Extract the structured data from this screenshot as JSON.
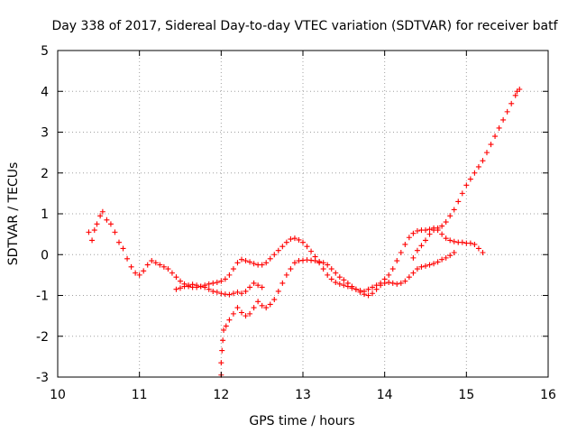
{
  "chart_data": {
    "type": "scatter",
    "title": "Day 338 of 2017, Sidereal Day-to-day VTEC variation (SDTVAR) for receiver batf",
    "xlabel": "GPS time / hours",
    "ylabel": "SDTVAR / TECUs",
    "xlim": [
      10,
      16
    ],
    "ylim": [
      -3,
      5
    ],
    "xticks": [
      "10",
      "11",
      "12",
      "13",
      "14",
      "15",
      "16"
    ],
    "yticks": [
      "-3",
      "-2",
      "-1",
      "0",
      "1",
      "2",
      "3",
      "4",
      "5"
    ],
    "grid": true,
    "marker": "plus",
    "series_color": "#ff0000",
    "series": [
      {
        "name": "trace-a",
        "points": [
          [
            10.38,
            0.55
          ],
          [
            10.42,
            0.35
          ],
          [
            10.45,
            0.6
          ],
          [
            10.48,
            0.75
          ],
          [
            10.52,
            0.95
          ],
          [
            10.55,
            1.05
          ],
          [
            10.6,
            0.85
          ],
          [
            10.65,
            0.75
          ],
          [
            10.7,
            0.55
          ],
          [
            10.75,
            0.3
          ],
          [
            10.8,
            0.15
          ],
          [
            10.85,
            -0.1
          ],
          [
            10.9,
            -0.3
          ],
          [
            10.95,
            -0.45
          ],
          [
            11.0,
            -0.5
          ],
          [
            11.05,
            -0.4
          ],
          [
            11.1,
            -0.25
          ],
          [
            11.15,
            -0.15
          ],
          [
            11.2,
            -0.2
          ],
          [
            11.25,
            -0.25
          ],
          [
            11.3,
            -0.3
          ],
          [
            11.35,
            -0.35
          ],
          [
            11.4,
            -0.45
          ],
          [
            11.45,
            -0.55
          ],
          [
            11.5,
            -0.65
          ],
          [
            11.55,
            -0.72
          ],
          [
            11.6,
            -0.78
          ],
          [
            11.65,
            -0.8
          ],
          [
            11.7,
            -0.8
          ],
          [
            11.75,
            -0.78
          ],
          [
            11.8,
            -0.75
          ],
          [
            11.85,
            -0.72
          ],
          [
            11.9,
            -0.7
          ],
          [
            11.95,
            -0.68
          ],
          [
            12.0,
            -0.65
          ],
          [
            12.05,
            -0.6
          ],
          [
            12.1,
            -0.5
          ],
          [
            12.15,
            -0.35
          ],
          [
            12.2,
            -0.2
          ],
          [
            12.25,
            -0.12
          ],
          [
            12.3,
            -0.15
          ],
          [
            12.35,
            -0.18
          ],
          [
            12.4,
            -0.22
          ],
          [
            12.45,
            -0.25
          ],
          [
            12.5,
            -0.25
          ],
          [
            12.55,
            -0.2
          ],
          [
            12.6,
            -0.1
          ],
          [
            12.65,
            0.0
          ],
          [
            12.7,
            0.1
          ],
          [
            12.75,
            0.2
          ],
          [
            12.8,
            0.3
          ],
          [
            12.85,
            0.38
          ],
          [
            12.9,
            0.4
          ],
          [
            12.95,
            0.36
          ],
          [
            13.0,
            0.3
          ],
          [
            13.05,
            0.2
          ],
          [
            13.1,
            0.08
          ],
          [
            13.15,
            -0.05
          ],
          [
            13.2,
            -0.2
          ],
          [
            13.25,
            -0.35
          ],
          [
            13.3,
            -0.5
          ],
          [
            13.35,
            -0.6
          ],
          [
            13.4,
            -0.68
          ],
          [
            13.45,
            -0.72
          ],
          [
            13.5,
            -0.75
          ],
          [
            13.55,
            -0.78
          ],
          [
            13.6,
            -0.82
          ],
          [
            13.65,
            -0.85
          ],
          [
            13.7,
            -0.88
          ],
          [
            13.75,
            -0.9
          ],
          [
            13.8,
            -0.85
          ],
          [
            13.85,
            -0.8
          ],
          [
            13.9,
            -0.75
          ],
          [
            13.95,
            -0.7
          ],
          [
            14.0,
            -0.6
          ],
          [
            14.05,
            -0.5
          ],
          [
            14.1,
            -0.35
          ],
          [
            14.15,
            -0.15
          ],
          [
            14.2,
            0.05
          ],
          [
            14.25,
            0.25
          ],
          [
            14.3,
            0.42
          ],
          [
            14.35,
            0.52
          ],
          [
            14.4,
            0.58
          ],
          [
            14.45,
            0.6
          ],
          [
            14.5,
            0.6
          ],
          [
            14.55,
            0.62
          ],
          [
            14.6,
            0.65
          ],
          [
            14.65,
            0.6
          ],
          [
            14.7,
            0.5
          ],
          [
            14.75,
            0.4
          ],
          [
            14.8,
            0.35
          ],
          [
            14.85,
            0.32
          ],
          [
            14.9,
            0.3
          ],
          [
            14.95,
            0.3
          ],
          [
            15.0,
            0.28
          ],
          [
            15.05,
            0.28
          ],
          [
            15.1,
            0.25
          ],
          [
            15.15,
            0.15
          ],
          [
            15.2,
            0.05
          ]
        ]
      },
      {
        "name": "trace-b",
        "points": [
          [
            11.45,
            -0.85
          ],
          [
            11.5,
            -0.82
          ],
          [
            11.55,
            -0.78
          ],
          [
            11.6,
            -0.75
          ],
          [
            11.65,
            -0.73
          ],
          [
            11.7,
            -0.75
          ],
          [
            11.75,
            -0.78
          ],
          [
            11.8,
            -0.8
          ],
          [
            11.85,
            -0.85
          ],
          [
            11.9,
            -0.9
          ],
          [
            11.95,
            -0.92
          ],
          [
            12.0,
            -0.95
          ],
          [
            12.05,
            -0.97
          ],
          [
            12.1,
            -0.98
          ],
          [
            12.15,
            -0.95
          ],
          [
            12.2,
            -0.92
          ],
          [
            12.25,
            -0.95
          ],
          [
            12.3,
            -0.9
          ],
          [
            12.35,
            -0.8
          ],
          [
            12.4,
            -0.7
          ],
          [
            12.45,
            -0.75
          ],
          [
            12.5,
            -0.8
          ]
        ]
      },
      {
        "name": "trace-c",
        "points": [
          [
            12.0,
            -2.95
          ],
          [
            12.0,
            -2.65
          ],
          [
            12.01,
            -2.35
          ],
          [
            12.02,
            -2.1
          ],
          [
            12.03,
            -1.85
          ],
          [
            12.06,
            -1.75
          ],
          [
            12.1,
            -1.6
          ],
          [
            12.15,
            -1.45
          ],
          [
            12.2,
            -1.3
          ],
          [
            12.25,
            -1.42
          ],
          [
            12.3,
            -1.5
          ],
          [
            12.35,
            -1.45
          ],
          [
            12.4,
            -1.3
          ],
          [
            12.45,
            -1.15
          ],
          [
            12.5,
            -1.25
          ],
          [
            12.55,
            -1.3
          ],
          [
            12.6,
            -1.22
          ],
          [
            12.65,
            -1.1
          ],
          [
            12.7,
            -0.9
          ],
          [
            12.75,
            -0.7
          ],
          [
            12.8,
            -0.5
          ],
          [
            12.85,
            -0.35
          ],
          [
            12.9,
            -0.2
          ],
          [
            12.95,
            -0.15
          ],
          [
            13.0,
            -0.14
          ],
          [
            13.05,
            -0.13
          ],
          [
            13.1,
            -0.14
          ],
          [
            13.15,
            -0.15
          ],
          [
            13.2,
            -0.17
          ],
          [
            13.25,
            -0.2
          ],
          [
            13.3,
            -0.25
          ],
          [
            13.35,
            -0.35
          ],
          [
            13.4,
            -0.45
          ],
          [
            13.45,
            -0.55
          ],
          [
            13.5,
            -0.62
          ],
          [
            13.55,
            -0.7
          ],
          [
            13.6,
            -0.78
          ],
          [
            13.65,
            -0.85
          ],
          [
            13.7,
            -0.92
          ],
          [
            13.75,
            -0.97
          ],
          [
            13.8,
            -1.0
          ],
          [
            13.85,
            -0.95
          ],
          [
            13.9,
            -0.85
          ],
          [
            13.95,
            -0.75
          ],
          [
            14.0,
            -0.7
          ],
          [
            14.05,
            -0.68
          ],
          [
            14.1,
            -0.7
          ],
          [
            14.15,
            -0.72
          ],
          [
            14.2,
            -0.7
          ],
          [
            14.25,
            -0.65
          ],
          [
            14.3,
            -0.55
          ],
          [
            14.35,
            -0.45
          ],
          [
            14.4,
            -0.35
          ],
          [
            14.45,
            -0.3
          ],
          [
            14.5,
            -0.28
          ],
          [
            14.55,
            -0.25
          ],
          [
            14.6,
            -0.22
          ],
          [
            14.65,
            -0.18
          ],
          [
            14.7,
            -0.12
          ],
          [
            14.75,
            -0.08
          ],
          [
            14.8,
            -0.02
          ],
          [
            14.85,
            0.05
          ]
        ]
      },
      {
        "name": "trace-d",
        "points": [
          [
            14.35,
            -0.08
          ],
          [
            14.4,
            0.1
          ],
          [
            14.45,
            0.22
          ],
          [
            14.5,
            0.35
          ],
          [
            14.55,
            0.5
          ],
          [
            14.6,
            0.6
          ],
          [
            14.65,
            0.65
          ],
          [
            14.7,
            0.7
          ],
          [
            14.75,
            0.8
          ],
          [
            14.8,
            0.95
          ],
          [
            14.85,
            1.1
          ],
          [
            14.9,
            1.3
          ],
          [
            14.95,
            1.5
          ],
          [
            15.0,
            1.7
          ],
          [
            15.05,
            1.85
          ],
          [
            15.1,
            2.0
          ],
          [
            15.15,
            2.15
          ],
          [
            15.2,
            2.3
          ],
          [
            15.25,
            2.5
          ],
          [
            15.3,
            2.7
          ],
          [
            15.35,
            2.9
          ],
          [
            15.4,
            3.1
          ],
          [
            15.45,
            3.3
          ],
          [
            15.5,
            3.5
          ],
          [
            15.55,
            3.7
          ],
          [
            15.6,
            3.9
          ],
          [
            15.62,
            4.0
          ],
          [
            15.65,
            4.05
          ]
        ]
      }
    ]
  }
}
